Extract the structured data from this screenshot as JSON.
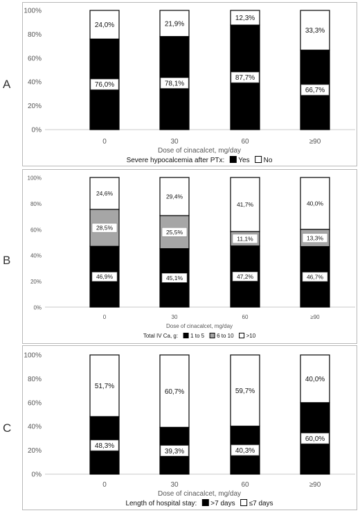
{
  "panels": [
    {
      "label": "A",
      "chart_data": {
        "type": "bar",
        "stacked": true,
        "percent": true,
        "categories": [
          "0",
          "30",
          "60",
          "≥90"
        ],
        "series": [
          {
            "name": "Yes",
            "values": [
              76.0,
              78.1,
              87.7,
              66.7
            ],
            "labels": [
              "76,0%",
              "78,1%",
              "87,7%",
              "66,7%"
            ],
            "color": "#000000"
          },
          {
            "name": "No",
            "values": [
              24.0,
              21.9,
              12.3,
              33.3
            ],
            "labels": [
              "24,0%",
              "21,9%",
              "12,3%",
              "33,3%"
            ],
            "color": "#ffffff"
          }
        ],
        "xlabel": "Dose of cinacalcet, mg/day",
        "legend_title": "Severe hypocalcemia after PTx:",
        "yticks": [
          "0%",
          "20%",
          "40%",
          "60%",
          "80%",
          "100%"
        ],
        "ylim": [
          0,
          100
        ],
        "legend": "bottom"
      }
    },
    {
      "label": "B",
      "chart_data": {
        "type": "bar",
        "stacked": true,
        "percent": true,
        "categories": [
          "0",
          "30",
          "60",
          "≥90"
        ],
        "series": [
          {
            "name": "1 to 5",
            "values": [
              46.9,
              45.1,
              47.2,
              46.7
            ],
            "labels": [
              "46,9%",
              "45,1%",
              "47,2%",
              "46,7%"
            ],
            "color": "#000000"
          },
          {
            "name": "6 to 10",
            "values": [
              28.5,
              25.5,
              11.1,
              13.3
            ],
            "labels": [
              "28,5%",
              "25,5%",
              "11,1%",
              "13,3%"
            ],
            "color": "#a6a6a6"
          },
          {
            "name": ">10",
            "values": [
              24.6,
              29.4,
              41.7,
              40.0
            ],
            "labels": [
              "24,6%",
              "29,4%",
              "41,7%",
              "40,0%"
            ],
            "color": "#ffffff"
          }
        ],
        "xlabel": "Dose of cinacalcet, mg/day",
        "legend_title": "Total IV Ca, g:",
        "yticks": [
          "0%",
          "20%",
          "40%",
          "60%",
          "80%",
          "100%"
        ],
        "ylim": [
          0,
          100
        ],
        "legend": "bottom"
      }
    },
    {
      "label": "C",
      "chart_data": {
        "type": "bar",
        "stacked": true,
        "percent": true,
        "categories": [
          "0",
          "30",
          "60",
          "≥90"
        ],
        "series": [
          {
            "name": ">7 days",
            "values": [
              48.3,
              39.3,
              40.3,
              60.0
            ],
            "labels": [
              "48,3%",
              "39,3%",
              "40,3%",
              "60,0%"
            ],
            "color": "#000000"
          },
          {
            "name": "≤7 days",
            "values": [
              51.7,
              60.7,
              59.7,
              40.0
            ],
            "labels": [
              "51,7%",
              "60,7%",
              "59,7%",
              "40,0%"
            ],
            "color": "#ffffff"
          }
        ],
        "xlabel": "Dose of cinacalcet, mg/day",
        "legend_title": "Length of hospital stay:",
        "yticks": [
          "0%",
          "20%",
          "40%",
          "60%",
          "80%",
          "100%"
        ],
        "ylim": [
          0,
          100
        ],
        "legend": "bottom"
      }
    }
  ]
}
